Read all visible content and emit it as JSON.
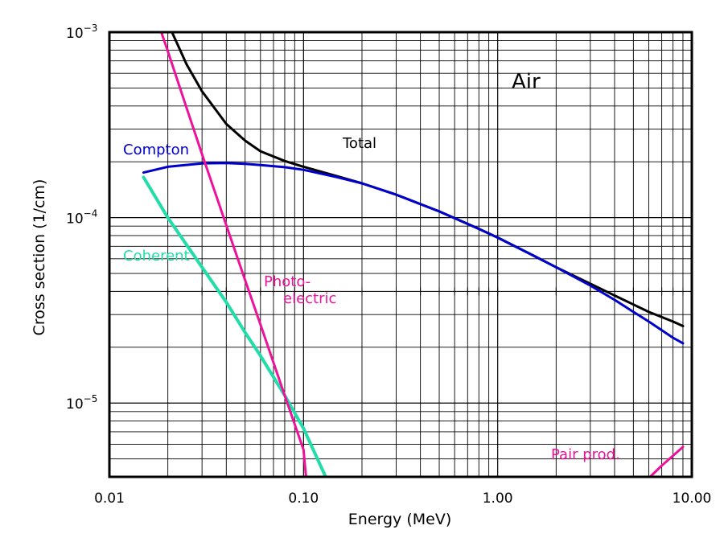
{
  "chart_data": {
    "type": "line",
    "title": "",
    "xlabel": "Energy (MeV)",
    "ylabel": "Cross section (1/cm)",
    "xscale": "log",
    "yscale": "log",
    "xlim": [
      0.01,
      10
    ],
    "ylim": [
      4e-06,
      0.001
    ],
    "grid": true,
    "annotation": "Air",
    "x_ticks": [
      {
        "value": 0.01,
        "label": "0.01"
      },
      {
        "value": 0.1,
        "label": "0.10"
      },
      {
        "value": 1,
        "label": "1.00"
      },
      {
        "value": 10,
        "label": "10.00"
      }
    ],
    "y_ticks": [
      {
        "value": 0.001,
        "mant": "10",
        "exp": "−3"
      },
      {
        "value": 0.0001,
        "mant": "10",
        "exp": "−4"
      },
      {
        "value": 1e-05,
        "mant": "10",
        "exp": "−5"
      }
    ],
    "series": [
      {
        "name": "Total",
        "color": "#000000",
        "label_lines": [
          "Total"
        ],
        "points": [
          [
            0.021,
            0.001
          ],
          [
            0.025,
            0.00067
          ],
          [
            0.03,
            0.00048
          ],
          [
            0.04,
            0.00032
          ],
          [
            0.05,
            0.00026
          ],
          [
            0.06,
            0.000228
          ],
          [
            0.08,
            0.000202
          ],
          [
            0.1,
            0.000188
          ],
          [
            0.15,
            0.000167
          ],
          [
            0.2,
            0.000153
          ],
          [
            0.3,
            0.000133
          ],
          [
            0.5,
            0.000108
          ],
          [
            0.8,
            8.7e-05
          ],
          [
            1.0,
            7.8e-05
          ],
          [
            1.5,
            6.3e-05
          ],
          [
            2.0,
            5.4e-05
          ],
          [
            3.0,
            4.4e-05
          ],
          [
            4.0,
            3.8e-05
          ],
          [
            5.0,
            3.4e-05
          ],
          [
            6.0,
            3.1e-05
          ],
          [
            8.0,
            2.75e-05
          ],
          [
            9.0,
            2.6e-05
          ]
        ]
      },
      {
        "name": "Compton",
        "color": "#0000cc",
        "label_lines": [
          "Compton"
        ],
        "points": [
          [
            0.015,
            0.000175
          ],
          [
            0.02,
            0.000188
          ],
          [
            0.03,
            0.000196
          ],
          [
            0.04,
            0.000197
          ],
          [
            0.05,
            0.000195
          ],
          [
            0.06,
            0.000192
          ],
          [
            0.08,
            0.000187
          ],
          [
            0.1,
            0.000181
          ],
          [
            0.15,
            0.000165
          ],
          [
            0.2,
            0.000153
          ],
          [
            0.3,
            0.000133
          ],
          [
            0.5,
            0.000108
          ],
          [
            0.8,
            8.7e-05
          ],
          [
            1.0,
            7.8e-05
          ],
          [
            1.5,
            6.3e-05
          ],
          [
            2.0,
            5.4e-05
          ],
          [
            3.0,
            4.3e-05
          ],
          [
            4.0,
            3.6e-05
          ],
          [
            5.0,
            3.1e-05
          ],
          [
            6.0,
            2.75e-05
          ],
          [
            8.0,
            2.25e-05
          ],
          [
            9.0,
            2.1e-05
          ]
        ]
      },
      {
        "name": "Coherent",
        "color": "#22ddaa",
        "label_lines": [
          "Coherent"
        ],
        "points": [
          [
            0.015,
            0.000165
          ],
          [
            0.02,
            0.0001
          ],
          [
            0.03,
            5.4e-05
          ],
          [
            0.04,
            3.5e-05
          ],
          [
            0.05,
            2.4e-05
          ],
          [
            0.06,
            1.8e-05
          ],
          [
            0.08,
            1.1e-05
          ],
          [
            0.1,
            7.3e-06
          ],
          [
            0.13,
            4e-06
          ]
        ]
      },
      {
        "name": "Photo-electric",
        "color": "#ee1199",
        "label_lines": [
          "Photo-",
          "electric"
        ],
        "points": [
          [
            0.0185,
            0.001
          ],
          [
            0.02,
            0.00079
          ],
          [
            0.025,
            0.00039
          ],
          [
            0.03,
            0.00022
          ],
          [
            0.04,
            9.1e-05
          ],
          [
            0.05,
            4.6e-05
          ],
          [
            0.06,
            2.65e-05
          ],
          [
            0.08,
            1.1e-05
          ],
          [
            0.1,
            5.6e-06
          ],
          [
            0.103,
            4e-06
          ]
        ]
      },
      {
        "name": "Pair prod.",
        "color": "#ee1199",
        "label_lines": [
          "Pair prod."
        ],
        "points": [
          [
            6.1,
            4e-06
          ],
          [
            7.0,
            4.6e-06
          ],
          [
            8.0,
            5.2e-06
          ],
          [
            9.0,
            5.8e-06
          ]
        ]
      }
    ]
  }
}
